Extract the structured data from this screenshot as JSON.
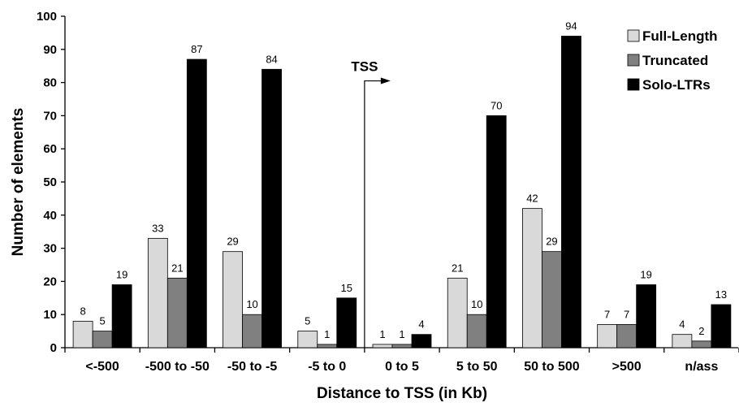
{
  "chart_data": {
    "type": "bar",
    "title": "",
    "xlabel": "Distance to TSS (in Kb)",
    "ylabel": "Number of elements",
    "ylim": [
      0,
      100
    ],
    "yticks": [
      0,
      10,
      20,
      30,
      40,
      50,
      60,
      70,
      80,
      90,
      100
    ],
    "grid": false,
    "legend_position": "top-right",
    "categories": [
      "<-500",
      "-500 to -50",
      "-50 to -5",
      "-5 to 0",
      "0 to 5",
      "5 to 50",
      "50 to 500",
      ">500",
      "n/ass"
    ],
    "series": [
      {
        "name": "Full-Length",
        "color": "#d9d9d9",
        "values": [
          8,
          33,
          29,
          5,
          1,
          21,
          42,
          7,
          4
        ]
      },
      {
        "name": "Truncated",
        "color": "#808080",
        "values": [
          5,
          21,
          10,
          1,
          1,
          10,
          29,
          7,
          2
        ]
      },
      {
        "name": "Solo-LTRs",
        "color": "#000000",
        "values": [
          19,
          87,
          84,
          15,
          4,
          70,
          94,
          19,
          13
        ]
      }
    ],
    "annotation": {
      "text": "TSS",
      "marker": "arrow between -5 to 0 and 0 to 5"
    }
  }
}
